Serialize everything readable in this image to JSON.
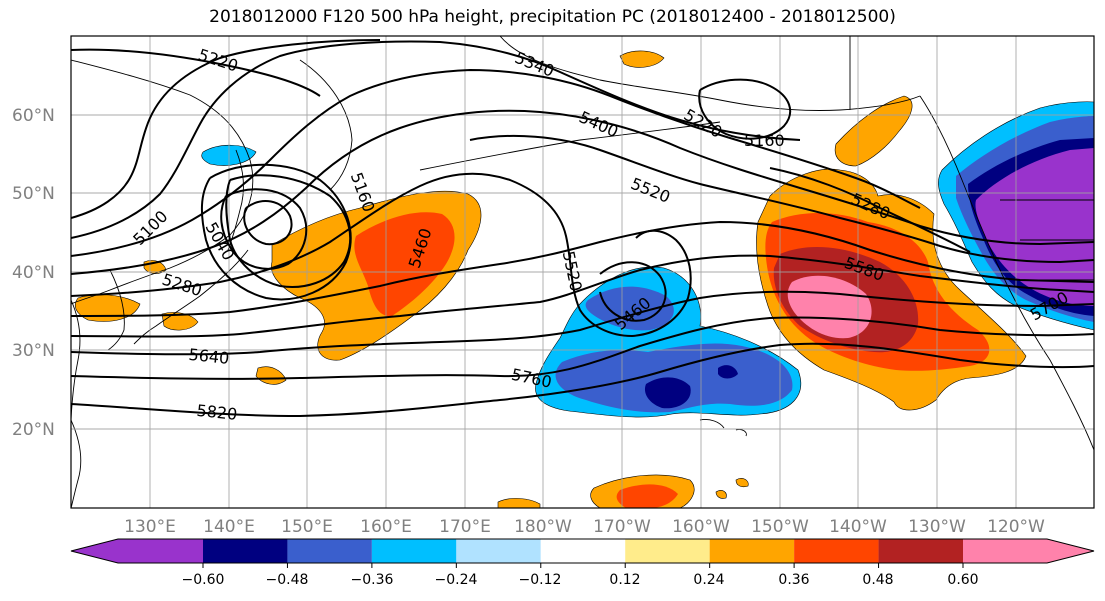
{
  "title": "2018012000 F120 500 hPa height, precipitation PC (2018012400 - 2018012500)",
  "lat_labels": [
    "60°N",
    "50°N",
    "40°N",
    "30°N",
    "20°N"
  ],
  "lon_labels": [
    "130°E",
    "140°E",
    "150°E",
    "160°E",
    "170°E",
    "180°W",
    "170°W",
    "160°W",
    "150°W",
    "140°W",
    "130°W",
    "120°W"
  ],
  "contour_labels": [
    "5220",
    "5340",
    "5220",
    "5160",
    "5400",
    "5100",
    "5160",
    "5040",
    "5460",
    "5520",
    "5520",
    "5280",
    "5460",
    "5580",
    "5280",
    "5700",
    "5640",
    "5760",
    "5820"
  ],
  "colorbar": {
    "ticks": [
      "−0.60",
      "−0.48",
      "−0.36",
      "−0.24",
      "−0.12",
      "0.12",
      "0.24",
      "0.36",
      "0.48",
      "0.60"
    ],
    "colors": [
      "#9933cc",
      "#000080",
      "#3a5fcd",
      "#00bfff",
      "#b0e2ff",
      "#ffffff",
      "#ffec8b",
      "#ffa500",
      "#ff4500",
      "#b22222",
      "#ff82ab"
    ]
  },
  "colors": {
    "contour": "#000000",
    "grid": "#a0a0a0",
    "coast": "#000000"
  }
}
